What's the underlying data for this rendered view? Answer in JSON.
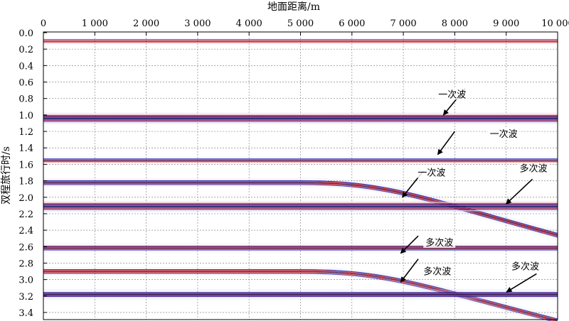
{
  "chart_data": {
    "type": "heatmap",
    "xlabel": "地面距离/m",
    "ylabel": "双程旅行时/s",
    "x_range": [
      0,
      10000
    ],
    "y_range": [
      0,
      3.5
    ],
    "x_ticks": [
      0,
      1000,
      2000,
      3000,
      4000,
      5000,
      6000,
      7000,
      8000,
      9000,
      10000
    ],
    "x_tick_labels": [
      "0",
      "1 000",
      "2 000",
      "3 000",
      "4 000",
      "5 000",
      "6 000",
      "7 000",
      "8 000",
      "9 000",
      "10 000"
    ],
    "y_ticks": [
      0.0,
      0.2,
      0.4,
      0.6,
      0.8,
      1.0,
      1.2,
      1.4,
      1.6,
      1.8,
      2.0,
      2.2,
      2.4,
      2.6,
      2.8,
      3.0,
      3.2,
      3.4
    ],
    "y_tick_labels": [
      "0.0",
      "0.2",
      "0.4",
      "0.6",
      "0.8",
      "1.0",
      "1.2",
      "1.4",
      "1.6",
      "1.8",
      "2.0",
      "2.2",
      "2.4",
      "2.6",
      "2.8",
      "3.0",
      "3.2",
      "3.4"
    ],
    "grid": true,
    "colors": {
      "red": "#e2261d",
      "blue": "#1a1aa8",
      "navy": "#1c1a66",
      "faint_red": "#f6c2c2",
      "faint_blue": "#c9c9f2"
    },
    "events": [
      {
        "kind": "flat",
        "t": 0.105,
        "intensity": 0.4
      },
      {
        "kind": "flat",
        "t": 1.04,
        "intensity": 1.0
      },
      {
        "kind": "flat",
        "t": 1.555,
        "intensity": 0.55
      },
      {
        "kind": "bend",
        "t_start": 1.82,
        "bend_x": 5000,
        "t_end": 2.46,
        "intensity": 0.7
      },
      {
        "kind": "flat",
        "t": 2.11,
        "intensity": 0.95
      },
      {
        "kind": "flat",
        "t": 2.615,
        "intensity": 0.7
      },
      {
        "kind": "bend",
        "t_start": 2.9,
        "bend_x": 5000,
        "t_end": 3.5,
        "intensity": 0.6
      },
      {
        "kind": "flat",
        "t": 3.18,
        "intensity": 0.85
      }
    ],
    "annotations": [
      {
        "label": "一次波",
        "label_x": 7950,
        "label_t": 0.78,
        "arrow_from": [
          8200,
          0.68
        ],
        "arrow_to": [
          7780,
          1.0
        ]
      },
      {
        "label": "一次波",
        "label_x": 8950,
        "label_t": 1.26,
        "arrow_from": [
          8000,
          1.2
        ],
        "arrow_to": [
          7670,
          1.48
        ]
      },
      {
        "label": "一次波",
        "label_x": 7550,
        "label_t": 1.73,
        "arrow_from": [
          7390,
          1.68
        ],
        "arrow_to": [
          6980,
          2.0
        ]
      },
      {
        "label": "多次波",
        "label_x": 9530,
        "label_t": 1.68,
        "arrow_from": [
          9510,
          1.78
        ],
        "arrow_to": [
          9000,
          2.08
        ]
      },
      {
        "label": "多次波",
        "label_x": 7700,
        "label_t": 2.58,
        "arrow_from": [
          7290,
          2.47
        ],
        "arrow_to": [
          6950,
          2.68
        ]
      },
      {
        "label": "多次波",
        "label_x": 7660,
        "label_t": 2.93,
        "arrow_from": [
          7290,
          2.75
        ],
        "arrow_to": [
          6950,
          3.03
        ]
      },
      {
        "label": "多次波",
        "label_x": 9370,
        "label_t": 2.87,
        "arrow_from": [
          9590,
          2.93
        ],
        "arrow_to": [
          9010,
          3.15
        ]
      }
    ]
  }
}
